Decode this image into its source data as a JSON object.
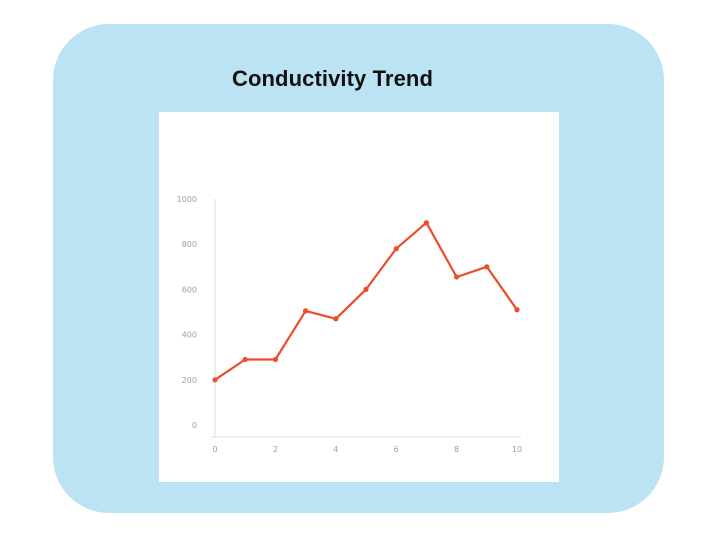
{
  "chart_data": {
    "type": "line",
    "title": "Conductivity Trend",
    "xlabel": "",
    "ylabel": "",
    "x": [
      0,
      1,
      2,
      3,
      4,
      5,
      6,
      7,
      8,
      9,
      10
    ],
    "series": [
      {
        "values": [
          200,
          290,
          290,
          505,
          470,
          600,
          780,
          895,
          655,
          700,
          510
        ],
        "color": "#ee4b2b"
      }
    ],
    "xlim": [
      0,
      10
    ],
    "ylim": [
      0,
      1000
    ],
    "xticks": [
      "0",
      "2",
      "4",
      "6",
      "8",
      "10"
    ],
    "yticks": [
      "0",
      "200",
      "400",
      "600",
      "800",
      "1000"
    ],
    "grid": false,
    "legend": "none"
  },
  "colors": {
    "card_background": "#bce3f4",
    "plot_background": "#ffffff",
    "line": "#ee4b2b",
    "axis": "#dddddd",
    "tick_text": "#9aa0a6"
  }
}
